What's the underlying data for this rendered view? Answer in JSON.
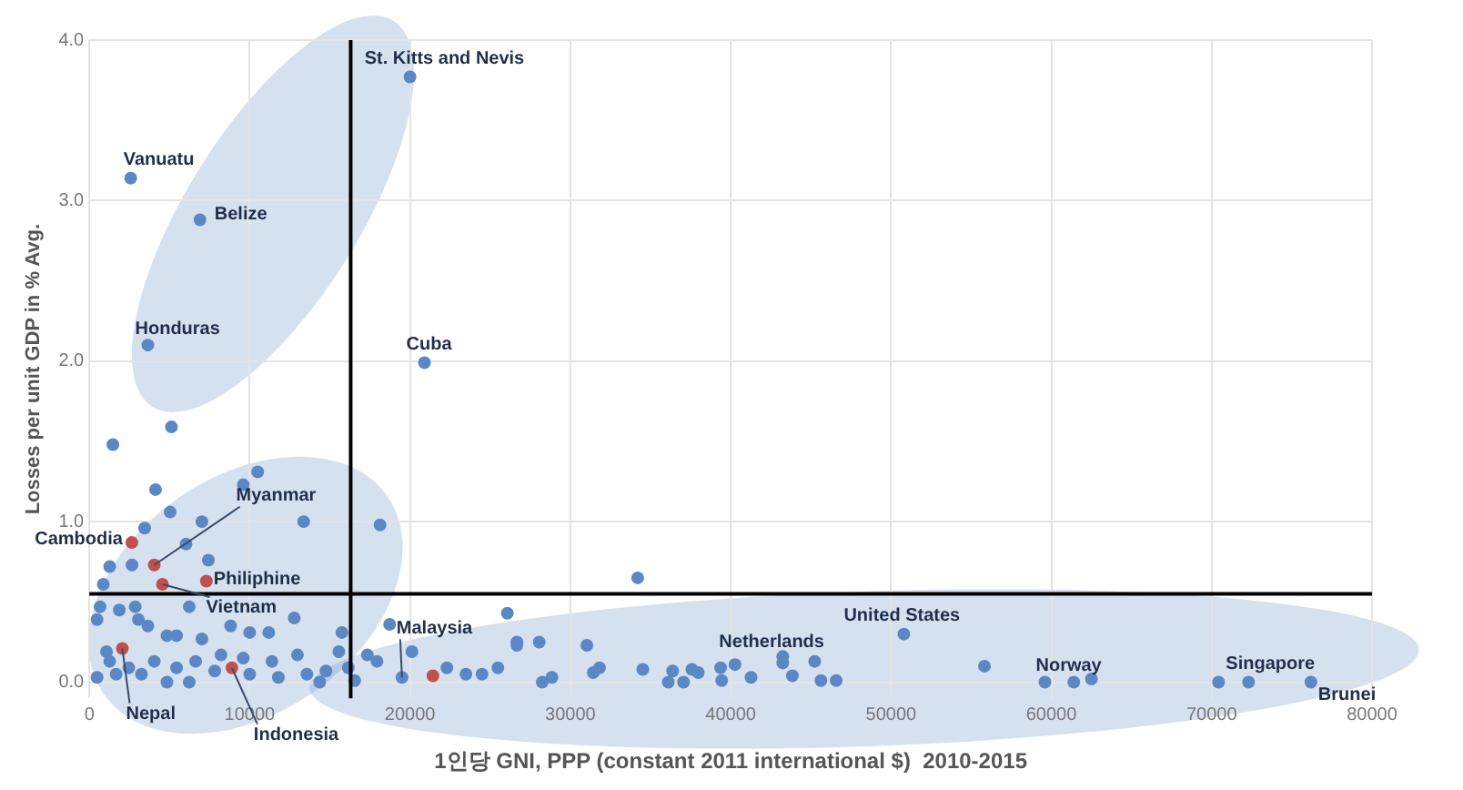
{
  "chart_data": {
    "type": "scatter",
    "xlabel": "1인당 GNI, PPP (constant 2011 international $)  2010-2015",
    "ylabel": "Losses per unit GDP in % Avg.",
    "xlim": [
      0,
      80000
    ],
    "xticks": [
      0,
      10000,
      20000,
      30000,
      40000,
      50000,
      60000,
      70000,
      80000
    ],
    "ylim": [
      -0.1,
      4.0
    ],
    "yticks": [
      {
        "value": 0,
        "label": "0.0"
      },
      {
        "value": 1,
        "label": "1.0"
      },
      {
        "value": 2,
        "label": "2.0"
      },
      {
        "value": 3,
        "label": "3.0"
      },
      {
        "value": 4,
        "label": "4.0"
      }
    ],
    "grid": true,
    "legend": false,
    "marker": "circle",
    "series": [
      {
        "color": "#5b87c5",
        "x": [
          20000,
          2580,
          6900,
          3650,
          20900,
          5120,
          1470,
          10500,
          4130,
          9600,
          18130,
          5040,
          3450,
          6030,
          7020,
          13370,
          1270,
          2660,
          870,
          7420,
          670,
          1870,
          2860,
          480,
          3060,
          3650,
          6230,
          4840,
          5440,
          7020,
          8810,
          10000,
          11190,
          12780,
          1070,
          1270,
          480,
          1670,
          2460,
          3250,
          4050,
          4840,
          5440,
          6230,
          6630,
          7820,
          8210,
          9600,
          10000,
          11390,
          11790,
          12980,
          13570,
          14370,
          14760,
          15560,
          16150,
          16550,
          15750,
          17340,
          17940,
          18730,
          19500,
          20120,
          22300,
          23490,
          24490,
          25480,
          26070,
          26670,
          28060,
          26670,
          28250,
          28850,
          31030,
          31430,
          31820,
          34200,
          34520,
          36110,
          36380,
          37060,
          37580,
          37980,
          39370,
          39440,
          40270,
          41270,
          43250,
          43250,
          43850,
          45240,
          45630,
          46580,
          50800,
          55830,
          59600,
          61400,
          62500,
          70430,
          72300,
          76190
        ],
        "values": [
          3.77,
          3.14,
          2.88,
          2.1,
          1.99,
          1.59,
          1.48,
          1.31,
          1.2,
          1.23,
          0.98,
          1.06,
          0.96,
          0.86,
          1.0,
          1.0,
          0.72,
          0.73,
          0.61,
          0.76,
          0.47,
          0.45,
          0.47,
          0.39,
          0.39,
          0.35,
          0.47,
          0.29,
          0.29,
          0.27,
          0.35,
          0.31,
          0.31,
          0.4,
          0.19,
          0.13,
          0.03,
          0.05,
          0.09,
          0.05,
          0.13,
          0.0,
          0.09,
          0.0,
          0.13,
          0.07,
          0.17,
          0.15,
          0.05,
          0.13,
          0.03,
          0.17,
          0.05,
          0.0,
          0.07,
          0.19,
          0.09,
          0.01,
          0.31,
          0.17,
          0.13,
          0.36,
          0.03,
          0.19,
          0.09,
          0.05,
          0.05,
          0.09,
          0.43,
          0.25,
          0.25,
          0.23,
          0.0,
          0.03,
          0.23,
          0.06,
          0.09,
          0.65,
          0.08,
          0.0,
          0.07,
          0.0,
          0.08,
          0.06,
          0.09,
          0.01,
          0.11,
          0.03,
          0.16,
          0.12,
          0.04,
          0.13,
          0.01,
          0.01,
          0.3,
          0.1,
          0.0,
          0.0,
          0.02,
          0.0,
          0.0,
          0.0
        ]
      },
      {
        "color": "#c0504d",
        "x": [
          2650,
          4050,
          4560,
          7300,
          2060,
          8890,
          21430
        ],
        "values": [
          0.87,
          0.73,
          0.61,
          0.63,
          0.21,
          0.09,
          0.04
        ]
      }
    ],
    "ref_lines": [
      {
        "axis": "x",
        "value": 16300,
        "color": "#000000"
      },
      {
        "axis": "y",
        "value": 0.55,
        "color": "#000000"
      }
    ],
    "annotations": [
      {
        "text": "St. Kitts and Nevis",
        "x": 20000,
        "y": 3.77
      },
      {
        "text": "Vanuatu",
        "x": 2580,
        "y": 3.14
      },
      {
        "text": "Belize",
        "x": 6900,
        "y": 2.88
      },
      {
        "text": "Honduras",
        "x": 3650,
        "y": 2.1
      },
      {
        "text": "Cuba",
        "x": 20900,
        "y": 1.99
      },
      {
        "text": "Cambodia",
        "x": 2650,
        "y": 0.87
      },
      {
        "text": "Myanmar",
        "x": 4050,
        "y": 0.73
      },
      {
        "text": "Philiphine",
        "x": 7300,
        "y": 0.63
      },
      {
        "text": "Vietnam",
        "x": 4560,
        "y": 0.61
      },
      {
        "text": "Nepal",
        "x": 2060,
        "y": 0.21
      },
      {
        "text": "Indonesia",
        "x": 8890,
        "y": 0.09
      },
      {
        "text": "Malaysia",
        "x": 19500,
        "y": 0.03
      },
      {
        "text": "Netherlands",
        "x": 43250,
        "y": 0.16
      },
      {
        "text": "United States",
        "x": 50800,
        "y": 0.3
      },
      {
        "text": "Norway",
        "x": 59600,
        "y": 0.0
      },
      {
        "text": "Singapore",
        "x": 70430,
        "y": 0.0
      },
      {
        "text": "Brunei",
        "x": 76190,
        "y": 0.0
      }
    ]
  }
}
